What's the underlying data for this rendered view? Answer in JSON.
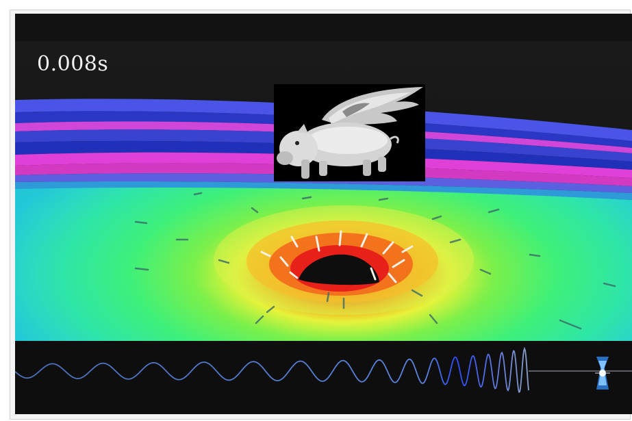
{
  "visualization": {
    "time_label": "0.008s",
    "colors": {
      "background": "#151515",
      "surface_green": "#3ef07a",
      "surface_yellow": "#d7f23c",
      "surface_red": "#f23c1e",
      "ring_blue": "#2b3ad8",
      "ring_magenta": "#e43ad6",
      "ring_cyan": "#3ad8e8",
      "waveform": "#4a7bd8"
    },
    "overlay_image": "winged-pig",
    "waveform_icon": "merger-icon"
  }
}
